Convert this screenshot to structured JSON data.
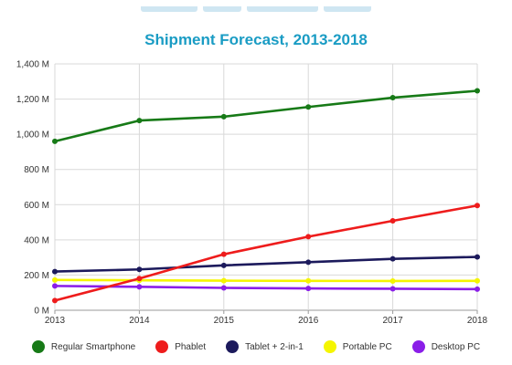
{
  "chart_data": {
    "type": "line",
    "title": "Shipment Forecast, 2013-2018",
    "xlabel": "",
    "ylabel": "",
    "x": [
      "2013",
      "2014",
      "2015",
      "2016",
      "2017",
      "2018"
    ],
    "y_ticks": [
      "0 M",
      "200 M",
      "400 M",
      "600 M",
      "800 M",
      "1,000 M",
      "1,200 M",
      "1,400 M"
    ],
    "ylim": [
      0,
      1400
    ],
    "grid": true,
    "legend_position": "bottom",
    "series": [
      {
        "name": "Regular Smartphone",
        "color": "#177a17",
        "values": [
          960,
          1078,
          1100,
          1155,
          1208,
          1247
        ]
      },
      {
        "name": "Phablet",
        "color": "#ee1c1c",
        "values": [
          55,
          180,
          318,
          418,
          508,
          595
        ]
      },
      {
        "name": "Tablet + 2-in-1",
        "color": "#1c1a5c",
        "values": [
          220,
          232,
          255,
          273,
          292,
          303
        ]
      },
      {
        "name": "Portable PC",
        "color": "#f5f500",
        "values": [
          172,
          170,
          168,
          167,
          166,
          167
        ]
      },
      {
        "name": "Desktop PC",
        "color": "#8a1ee8",
        "values": [
          138,
          133,
          127,
          124,
          122,
          120
        ]
      }
    ]
  }
}
